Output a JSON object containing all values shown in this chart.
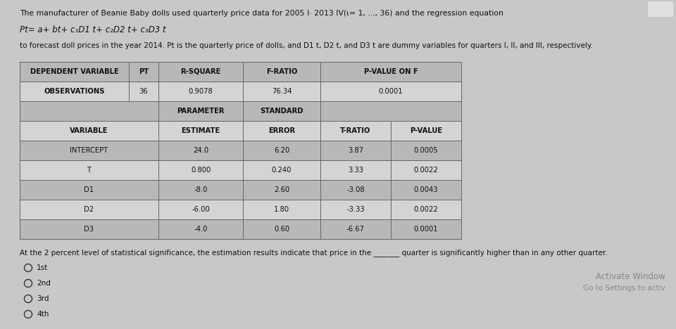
{
  "title_line1": "The manufacturer of Beanie Baby dolls used quarterly price data for 2005 I· 2013 IV(ι= 1, ..., 36) and the regression equation",
  "equation": "Pt= a+ bt+ c₁D1 t+ c₂D2 t+ c₃D3 t",
  "subtitle": "to forecast doll prices in the year 2014. Pt is the quarterly price of dolls, and D1 t, D2 t, and D3 t are dummy variables for quarters I, II, and III, respectively.",
  "table_data": [
    [
      "INTERCEPT",
      "24.0",
      "6.20",
      "3.87",
      "0.0005"
    ],
    [
      "T",
      "0.800",
      "0.240",
      "3.33",
      "0.0022"
    ],
    [
      "D1",
      "-8.0",
      "2.60",
      "-3.08",
      "0.0043"
    ],
    [
      "D2",
      "-6.00",
      "1.80",
      "-3.33",
      "0.0022"
    ],
    [
      "D3",
      "-4.0",
      "0.60",
      "-6.67",
      "0.0001"
    ]
  ],
  "question_text": "At the 2 percent level of statistical significance, the estimation results indicate that price in the _______ quarter is significantly higher than in any other quarter.",
  "options": [
    "1st",
    "2nd",
    "3rd",
    "4th"
  ],
  "bg_color": "#c8c8c8",
  "cell_dark": "#b8b8b8",
  "cell_light": "#d4d4d4",
  "table_border": "#666666",
  "text_color": "#111111",
  "watermark_text": "Activate Window",
  "watermark_subtext": "Go to Settings to activ"
}
